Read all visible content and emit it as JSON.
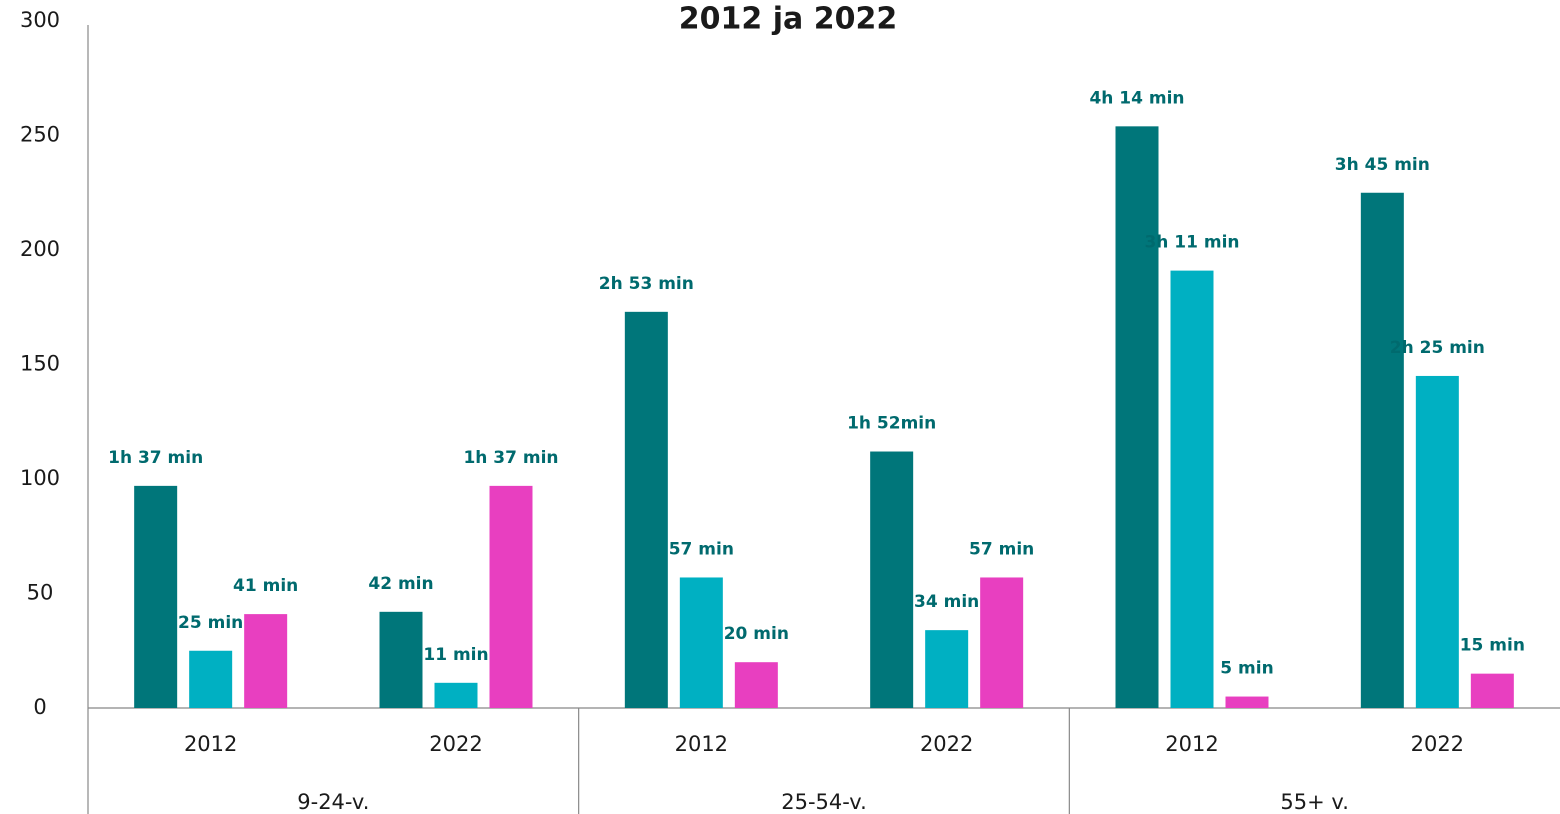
{
  "chart_data": {
    "type": "bar",
    "title": "2012 ja 2022",
    "categories": [
      "2012",
      "2022",
      "2012",
      "2022",
      "2012",
      "2022"
    ],
    "group_labels": [
      "9-24-v.",
      "25-54-v.",
      "55+ v."
    ],
    "series": [
      {
        "color": "#00767a",
        "values": [
          97,
          42,
          173,
          112,
          254,
          225
        ],
        "value_labels": [
          "1h 37 min",
          "42 min",
          "2h 53 min",
          "1h 52min",
          "4h 14 min",
          "3h 45 min"
        ]
      },
      {
        "color": "#00b0c2",
        "values": [
          25,
          11,
          57,
          34,
          191,
          145
        ],
        "value_labels": [
          "25 min",
          "11 min",
          "57 min",
          "34 min",
          "3h 11 min",
          "2h 25 min"
        ]
      },
      {
        "color": "#e83fc0",
        "values": [
          41,
          97,
          20,
          57,
          5,
          15
        ],
        "value_labels": [
          "41 min",
          "1h 37 min",
          "20 min",
          "57 min",
          "5 min",
          "15 min"
        ]
      }
    ],
    "ylim": [
      0,
      300
    ],
    "yticks": [
      0,
      50,
      100,
      150,
      200,
      250,
      300
    ],
    "grid": false
  }
}
